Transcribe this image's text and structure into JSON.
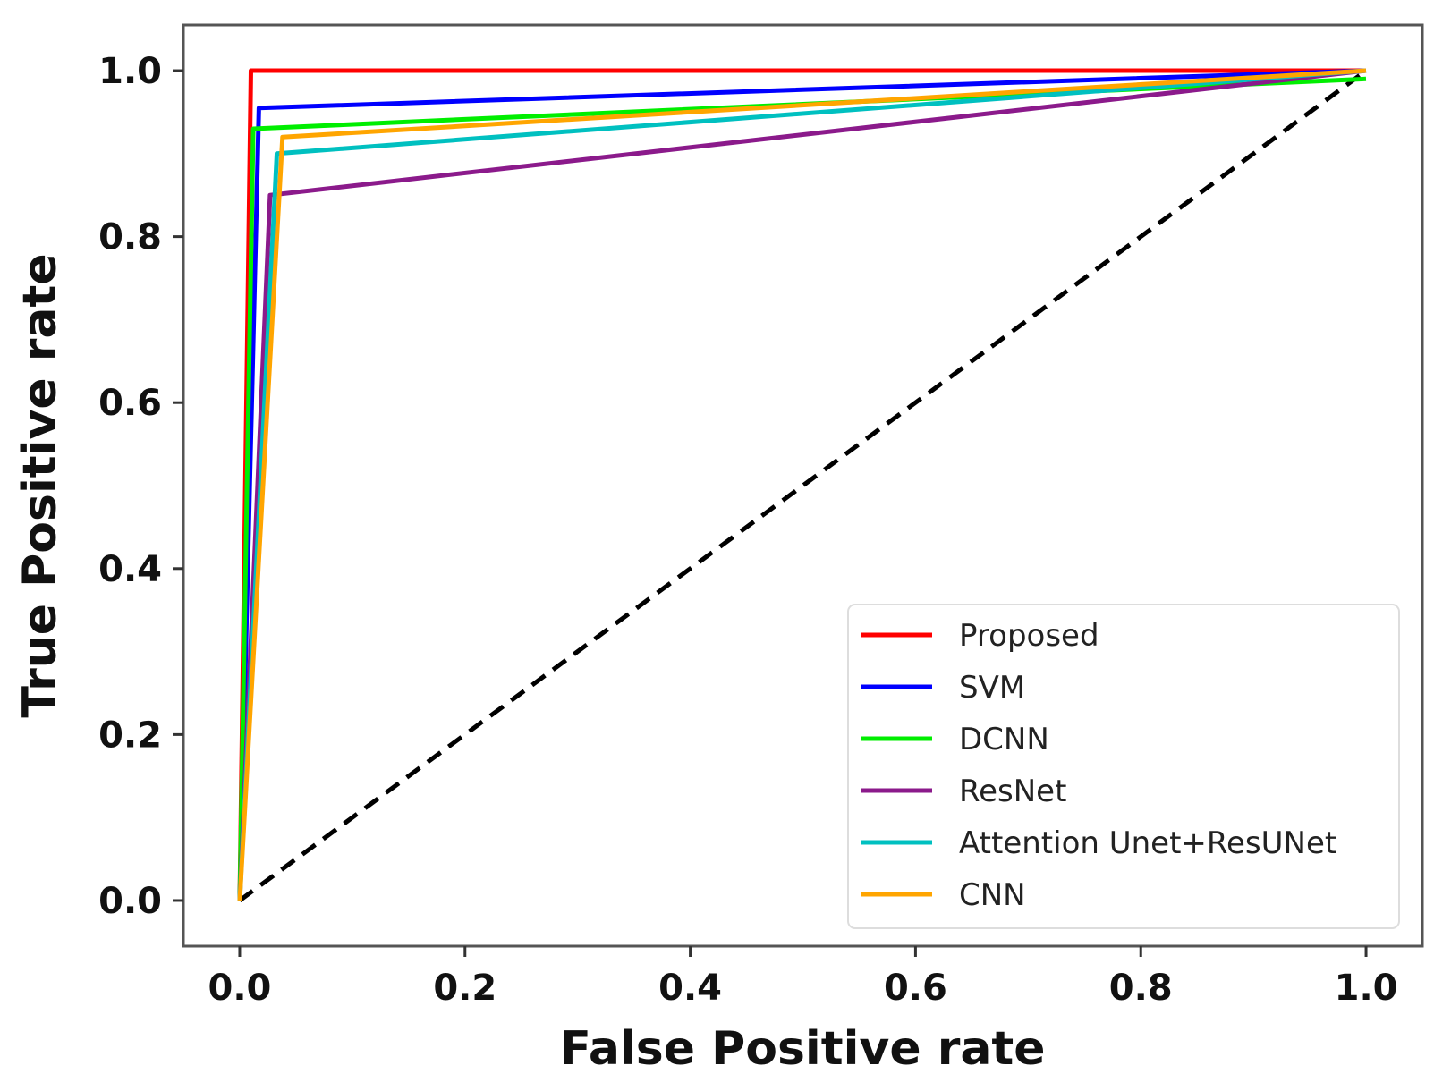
{
  "chart_data": {
    "type": "line",
    "title": "",
    "xlabel": "False Positive rate",
    "ylabel": "True Positive rate",
    "xlim": [
      -0.05,
      1.05
    ],
    "ylim": [
      -0.055,
      1.055
    ],
    "xticks": [
      "0.0",
      "0.2",
      "0.4",
      "0.6",
      "0.8",
      "1.0"
    ],
    "yticks": [
      "0.0",
      "0.2",
      "0.4",
      "0.6",
      "0.8",
      "1.0"
    ],
    "grid": false,
    "legend_position": "lower-right",
    "series": [
      {
        "name": "Proposed",
        "color": "#ff0000",
        "x": [
          0,
          0.01,
          1.0
        ],
        "y": [
          0,
          1.0,
          1.0
        ]
      },
      {
        "name": "SVM",
        "color": "#0000ff",
        "x": [
          0,
          0.017,
          1.0
        ],
        "y": [
          0,
          0.955,
          1.0
        ]
      },
      {
        "name": "DCNN",
        "color": "#00ee00",
        "x": [
          0,
          0.012,
          1.0
        ],
        "y": [
          0,
          0.93,
          0.99
        ]
      },
      {
        "name": "ResNet",
        "color": "#8b1a8b",
        "x": [
          0,
          0.027,
          1.0
        ],
        "y": [
          0,
          0.85,
          1.0
        ]
      },
      {
        "name": "Attention Unet+ResUNet",
        "color": "#00c0c0",
        "x": [
          0,
          0.033,
          1.0
        ],
        "y": [
          0,
          0.9,
          1.0
        ]
      },
      {
        "name": "CNN",
        "color": "#ffa500",
        "x": [
          0,
          0.038,
          1.0
        ],
        "y": [
          0,
          0.92,
          1.0
        ]
      }
    ],
    "reference_line": {
      "x": [
        0,
        1.0
      ],
      "y": [
        0,
        1.0
      ],
      "color": "#000000",
      "style": "dashed"
    }
  }
}
